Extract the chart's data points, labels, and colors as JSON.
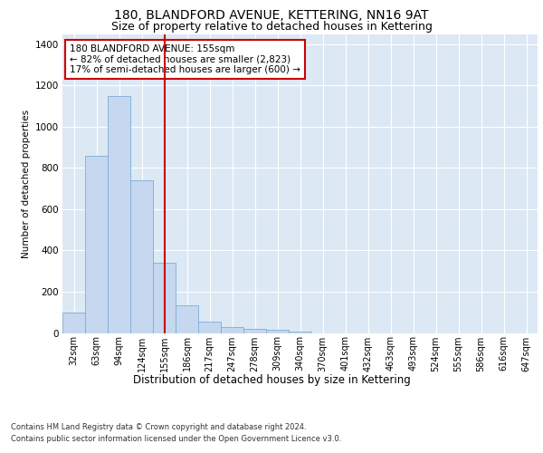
{
  "title1": "180, BLANDFORD AVENUE, KETTERING, NN16 9AT",
  "title2": "Size of property relative to detached houses in Kettering",
  "xlabel": "Distribution of detached houses by size in Kettering",
  "ylabel": "Number of detached properties",
  "footnote1": "Contains HM Land Registry data © Crown copyright and database right 2024.",
  "footnote2": "Contains public sector information licensed under the Open Government Licence v3.0.",
  "categories": [
    "32sqm",
    "63sqm",
    "94sqm",
    "124sqm",
    "155sqm",
    "186sqm",
    "217sqm",
    "247sqm",
    "278sqm",
    "309sqm",
    "340sqm",
    "370sqm",
    "401sqm",
    "432sqm",
    "463sqm",
    "493sqm",
    "524sqm",
    "555sqm",
    "586sqm",
    "616sqm",
    "647sqm"
  ],
  "values": [
    100,
    860,
    1150,
    740,
    340,
    135,
    55,
    28,
    20,
    15,
    5,
    0,
    0,
    0,
    0,
    0,
    0,
    0,
    0,
    0,
    0
  ],
  "bar_color": "#c5d8ef",
  "bar_edge_color": "#7bafd4",
  "reference_line_x": 4,
  "reference_line_color": "#cc0000",
  "annotation_text": "180 BLANDFORD AVENUE: 155sqm\n← 82% of detached houses are smaller (2,823)\n17% of semi-detached houses are larger (600) →",
  "annotation_box_color": "#cc0000",
  "ylim": [
    0,
    1450
  ],
  "yticks": [
    0,
    200,
    400,
    600,
    800,
    1000,
    1200,
    1400
  ],
  "bg_color": "#ffffff",
  "plot_bg_color": "#dde8f5",
  "grid_color": "#ffffff",
  "title1_fontsize": 10,
  "title2_fontsize": 9,
  "annotation_fontsize": 7.5,
  "xlabel_fontsize": 8.5,
  "ylabel_fontsize": 7.5,
  "footnote_fontsize": 6.0
}
